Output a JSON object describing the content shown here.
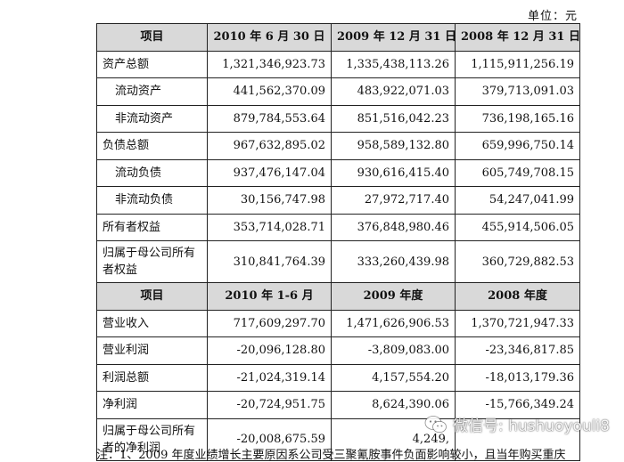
{
  "unit_label": "单位：元",
  "table": {
    "top_header": [
      "项目",
      "2010 年 6 月 30 日",
      "2009 年 12 月 31 日",
      "2008 年 12 月 31 日"
    ],
    "balance_rows": [
      {
        "label": "资产总额",
        "v1": "1,321,346,923.73",
        "v2": "1,335,438,113.26",
        "v3": "1,115,911,256.19"
      },
      {
        "label": "流动资产",
        "v1": "441,562,370.09",
        "v2": "483,922,071.03",
        "v3": "379,713,091.03"
      },
      {
        "label": "非流动资产",
        "v1": "879,784,553.64",
        "v2": "851,516,042.23",
        "v3": "736,198,165.16"
      },
      {
        "label": "负债总额",
        "v1": "967,632,895.02",
        "v2": "958,589,132.80",
        "v3": "659,996,750.14"
      },
      {
        "label": "流动负债",
        "v1": "937,476,147.04",
        "v2": "930,616,415.40",
        "v3": "605,749,708.15"
      },
      {
        "label": "非流动负债",
        "v1": "30,156,747.98",
        "v2": "27,972,717.40",
        "v3": "54,247,041.99"
      },
      {
        "label": "所有者权益",
        "v1": "353,714,028.71",
        "v2": "376,848,980.46",
        "v3": "455,914,506.05"
      },
      {
        "label": "归属于母公司所有者权益",
        "v1": "310,841,764.39",
        "v2": "333,260,439.98",
        "v3": "360,729,882.53"
      }
    ],
    "mid_header": [
      "项目",
      "2010 年 1-6 月",
      "2009 年度",
      "2008 年度"
    ],
    "income_rows": [
      {
        "label": "营业收入",
        "v1": "717,609,297.70",
        "v2": "1,471,626,906.53",
        "v3": "1,370,721,947.33"
      },
      {
        "label": "营业利润",
        "v1": "-20,096,128.80",
        "v2": "-3,809,083.00",
        "v3": "-23,346,817.85"
      },
      {
        "label": "利润总额",
        "v1": "-21,024,319.14",
        "v2": "4,157,554.20",
        "v3": "-18,013,179.36"
      },
      {
        "label": "净利润",
        "v1": "-20,724,951.75",
        "v2": "8,624,390.06",
        "v3": "-15,766,349.24"
      },
      {
        "label": "归属于母公司所有者的净利润",
        "v1": "-20,008,675.59",
        "v2": "4,249,",
        "v3": ""
      }
    ]
  },
  "note_text": "注：1、2009 年度业绩增长主要原因系公司受三聚氰胺事件负面影响较小，且当年购买重庆",
  "watermark": {
    "text": "微信号: hushuoyouli8",
    "icon": "wechat-icon"
  }
}
